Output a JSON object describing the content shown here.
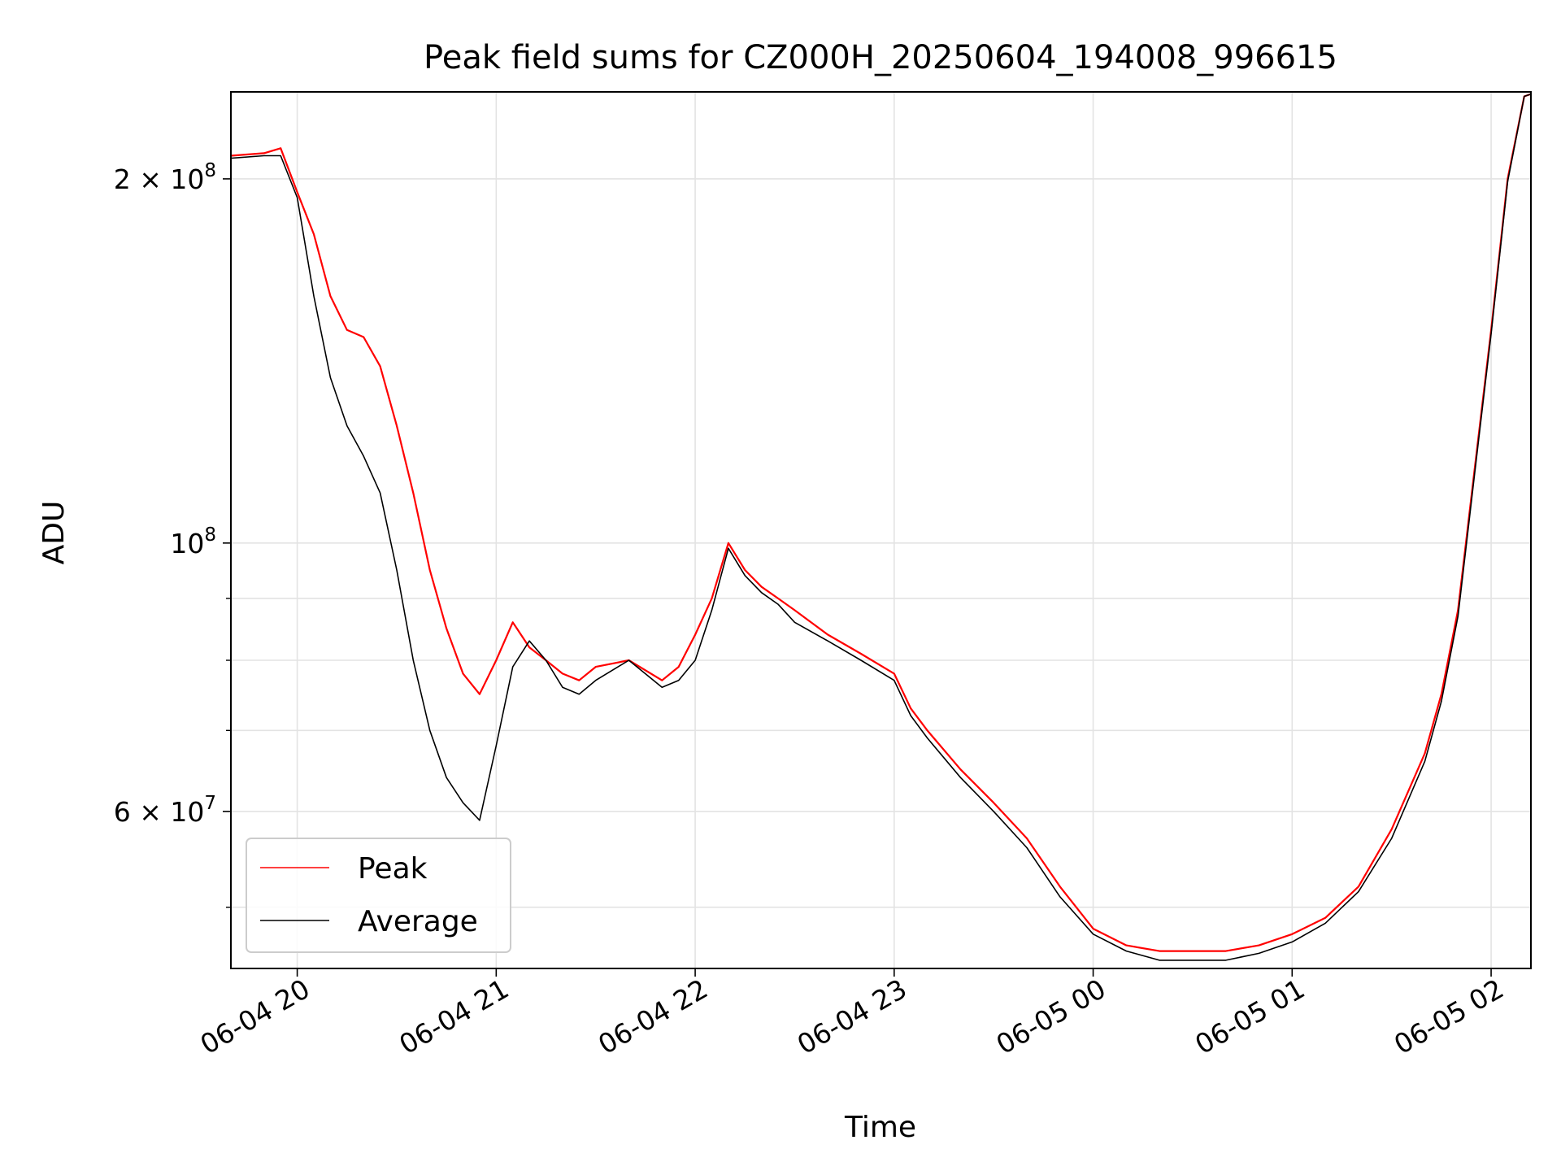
{
  "chart_data": {
    "type": "line",
    "title": "Peak field sums for CZ000H_20250604_194008_996615",
    "xlabel": "Time",
    "ylabel": "ADU",
    "y_scale": "log",
    "ylim": [
      44500000,
      236000000
    ],
    "xlim": [
      "2025-06-04 19:40:00",
      "2025-06-05 02:12:00"
    ],
    "grid": true,
    "legend_position": "lower-left",
    "x_ticks": [
      {
        "label": "06-04 20",
        "time": "2025-06-04 20:00:00"
      },
      {
        "label": "06-04 21",
        "time": "2025-06-04 21:00:00"
      },
      {
        "label": "06-04 22",
        "time": "2025-06-04 22:00:00"
      },
      {
        "label": "06-04 23",
        "time": "2025-06-04 23:00:00"
      },
      {
        "label": "06-05 00",
        "time": "2025-06-05 00:00:00"
      },
      {
        "label": "06-05 01",
        "time": "2025-06-05 01:00:00"
      },
      {
        "label": "06-05 02",
        "time": "2025-06-05 02:00:00"
      }
    ],
    "y_ticks": [
      {
        "base": "2",
        "exp": "8",
        "value": 200000000
      },
      {
        "base": "",
        "exp": "8",
        "value": 100000000
      },
      {
        "base": "6",
        "exp": "7",
        "value": 60000000
      }
    ],
    "y_minor_ticks": [
      50000000,
      70000000,
      80000000,
      90000000
    ],
    "x": [
      "2025-06-04 19:40:00",
      "2025-06-04 19:50:00",
      "2025-06-04 19:55:00",
      "2025-06-04 20:00:00",
      "2025-06-04 20:05:00",
      "2025-06-04 20:10:00",
      "2025-06-04 20:15:00",
      "2025-06-04 20:20:00",
      "2025-06-04 20:25:00",
      "2025-06-04 20:30:00",
      "2025-06-04 20:35:00",
      "2025-06-04 20:40:00",
      "2025-06-04 20:45:00",
      "2025-06-04 20:50:00",
      "2025-06-04 20:55:00",
      "2025-06-04 21:00:00",
      "2025-06-04 21:05:00",
      "2025-06-04 21:10:00",
      "2025-06-04 21:15:00",
      "2025-06-04 21:20:00",
      "2025-06-04 21:25:00",
      "2025-06-04 21:30:00",
      "2025-06-04 21:40:00",
      "2025-06-04 21:50:00",
      "2025-06-04 21:55:00",
      "2025-06-04 22:00:00",
      "2025-06-04 22:05:00",
      "2025-06-04 22:10:00",
      "2025-06-04 22:15:00",
      "2025-06-04 22:20:00",
      "2025-06-04 22:25:00",
      "2025-06-04 22:30:00",
      "2025-06-04 22:40:00",
      "2025-06-04 22:50:00",
      "2025-06-04 23:00:00",
      "2025-06-04 23:05:00",
      "2025-06-04 23:10:00",
      "2025-06-04 23:20:00",
      "2025-06-04 23:30:00",
      "2025-06-04 23:40:00",
      "2025-06-04 23:50:00",
      "2025-06-05 00:00:00",
      "2025-06-05 00:10:00",
      "2025-06-05 00:20:00",
      "2025-06-05 00:30:00",
      "2025-06-05 00:40:00",
      "2025-06-05 00:50:00",
      "2025-06-05 01:00:00",
      "2025-06-05 01:10:00",
      "2025-06-05 01:20:00",
      "2025-06-05 01:30:00",
      "2025-06-05 01:40:00",
      "2025-06-05 01:45:00",
      "2025-06-05 01:50:00",
      "2025-06-05 01:55:00",
      "2025-06-05 02:00:00",
      "2025-06-05 02:05:00",
      "2025-06-05 02:10:00",
      "2025-06-05 02:12:00"
    ],
    "series": [
      {
        "name": "Peak",
        "color": "#ff0000",
        "values": [
          209000000,
          210000000,
          212000000,
          195000000,
          180000000,
          160000000,
          150000000,
          148000000,
          140000000,
          125000000,
          110000000,
          95000000,
          85000000,
          78000000,
          75000000,
          80000000,
          86000000,
          82000000,
          80000000,
          78000000,
          77000000,
          79000000,
          80000000,
          77000000,
          79000000,
          84000000,
          90000000,
          100000000,
          95000000,
          92000000,
          90000000,
          88000000,
          84000000,
          81000000,
          78000000,
          73000000,
          70000000,
          65000000,
          61000000,
          57000000,
          52000000,
          48000000,
          46500000,
          46000000,
          46000000,
          46000000,
          46500000,
          47500000,
          49000000,
          52000000,
          58000000,
          67000000,
          75000000,
          88000000,
          115000000,
          150000000,
          200000000,
          234000000,
          235000000
        ]
      },
      {
        "name": "Average",
        "color": "#000000",
        "values": [
          208000000,
          209000000,
          209000000,
          193000000,
          160000000,
          137000000,
          125000000,
          118000000,
          110000000,
          95000000,
          80000000,
          70000000,
          64000000,
          61000000,
          59000000,
          68000000,
          79000000,
          83000000,
          80000000,
          76000000,
          75000000,
          77000000,
          80000000,
          76000000,
          77000000,
          80000000,
          88000000,
          99000000,
          94000000,
          91000000,
          89000000,
          86000000,
          83000000,
          80000000,
          77000000,
          72000000,
          69000000,
          64000000,
          60000000,
          56000000,
          51000000,
          47500000,
          46000000,
          45200000,
          45200000,
          45200000,
          45800000,
          46800000,
          48500000,
          51500000,
          57000000,
          66000000,
          74000000,
          87000000,
          114000000,
          149000000,
          199000000,
          234000000,
          235000000
        ]
      }
    ],
    "legend": [
      {
        "label": "Peak",
        "color": "#ff0000"
      },
      {
        "label": "Average",
        "color": "#000000"
      }
    ]
  }
}
